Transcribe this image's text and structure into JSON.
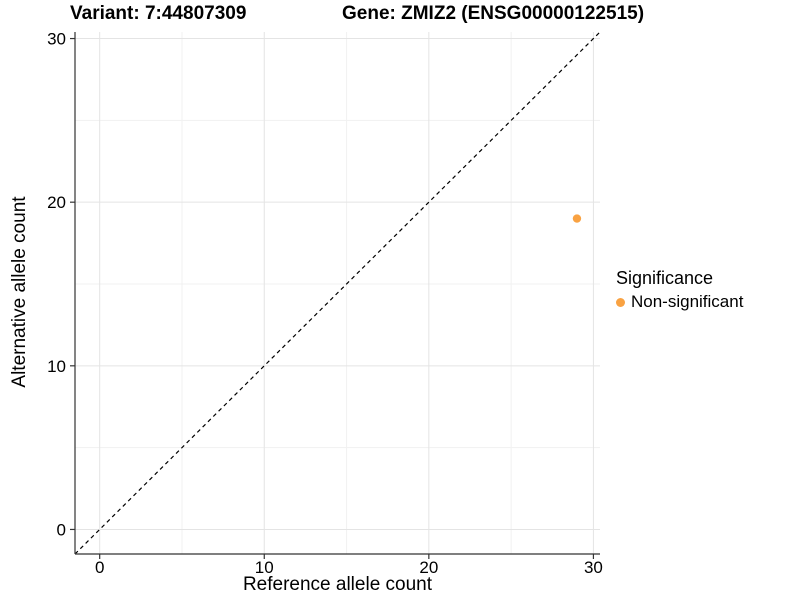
{
  "header": {
    "variant_title": "Variant: 7:44807309",
    "gene_title": "Gene: ZMIZ2 (ENSG00000122515)"
  },
  "chart_data": {
    "type": "scatter",
    "title": "Variant: 7:44807309 — Gene: ZMIZ2 (ENSG00000122515)",
    "xlabel": "Reference allele count",
    "ylabel": "Alternative allele count",
    "xlim": [
      -1.5,
      30.4
    ],
    "ylim": [
      -1.5,
      30.4
    ],
    "x_major_ticks": [
      0,
      10,
      20,
      30
    ],
    "y_major_ticks": [
      0,
      10,
      20,
      30
    ],
    "x_minor_ticks": [
      5,
      15,
      25
    ],
    "y_minor_ticks": [
      5,
      15,
      25
    ],
    "grid": true,
    "points": [
      {
        "x": 29,
        "y": 19,
        "series": "Non-significant"
      }
    ],
    "identity_line": {
      "slope": 1,
      "intercept": 0,
      "style": "dashed"
    },
    "legend": {
      "title": "Significance",
      "position": "right",
      "items": [
        {
          "label": "Non-significant",
          "color": "#F9A242"
        }
      ]
    },
    "colors": {
      "point": "#F9A242",
      "grid_major": "#E4E4E4",
      "grid_minor": "#F1F1F1",
      "axis_line": "#333333",
      "identity_line": "#000000",
      "text": "#000000"
    }
  }
}
